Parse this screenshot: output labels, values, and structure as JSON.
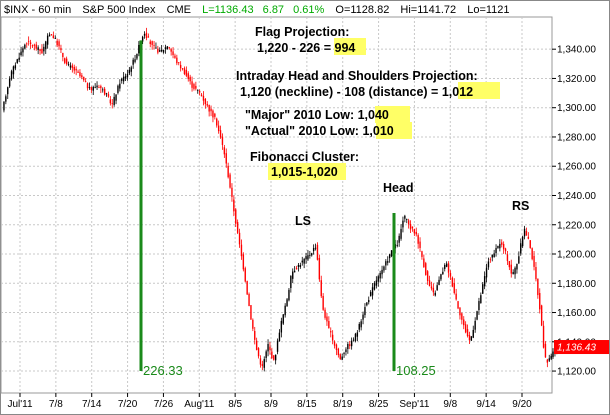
{
  "header": {
    "symbol": "$INX - 60 min",
    "name": "S&P 500 Index",
    "exchange": "CME",
    "last": "L=1136.43",
    "change": "6.87",
    "change_pct": "0.61%",
    "open": "O=1128.82",
    "high": "Hi=1141.72",
    "low": "Lo=1121"
  },
  "chart_data": {
    "type": "bar",
    "subtype": "ohlc-candlestick",
    "ylim": [
      1105,
      1362
    ],
    "y_ticks": [
      {
        "value": 1120,
        "label": "1,120.00"
      },
      {
        "value": 1140,
        "label": "1,140.00"
      },
      {
        "value": 1160,
        "label": "1,160.00"
      },
      {
        "value": 1180,
        "label": "1,180.00"
      },
      {
        "value": 1200,
        "label": "1,200.00"
      },
      {
        "value": 1220,
        "label": "1,220.00"
      },
      {
        "value": 1240,
        "label": "1,240.00"
      },
      {
        "value": 1260,
        "label": "1,260.00"
      },
      {
        "value": 1280,
        "label": "1,280.00"
      },
      {
        "value": 1300,
        "label": "1,300.00"
      },
      {
        "value": 1320,
        "label": "1,320.00"
      },
      {
        "value": 1340,
        "label": "1,340.00"
      }
    ],
    "x_ticks": [
      "Jul'11",
      "7/8",
      "7/14",
      "7/20",
      "7/26",
      "Aug'11",
      "8/5",
      "8/9",
      "8/15",
      "8/19",
      "8/25",
      "Sep'11",
      "9/8",
      "9/14",
      "9/20"
    ],
    "grid": true,
    "price_path": [
      [
        0,
        1297
      ],
      [
        8,
        1322
      ],
      [
        16,
        1334
      ],
      [
        24,
        1345
      ],
      [
        32,
        1342
      ],
      [
        40,
        1338
      ],
      [
        48,
        1352
      ],
      [
        56,
        1343
      ],
      [
        64,
        1330
      ],
      [
        72,
        1326
      ],
      [
        80,
        1320
      ],
      [
        88,
        1312
      ],
      [
        96,
        1316
      ],
      [
        104,
        1309
      ],
      [
        110,
        1302
      ],
      [
        118,
        1318
      ],
      [
        126,
        1324
      ],
      [
        134,
        1336
      ],
      [
        142,
        1352
      ],
      [
        150,
        1342
      ],
      [
        158,
        1338
      ],
      [
        166,
        1343
      ],
      [
        174,
        1332
      ],
      [
        182,
        1325
      ],
      [
        190,
        1315
      ],
      [
        198,
        1310
      ],
      [
        206,
        1300
      ],
      [
        214,
        1291
      ],
      [
        222,
        1270
      ],
      [
        228,
        1246
      ],
      [
        236,
        1212
      ],
      [
        242,
        1188
      ],
      [
        248,
        1160
      ],
      [
        254,
        1136
      ],
      [
        260,
        1122
      ],
      [
        266,
        1138
      ],
      [
        272,
        1126
      ],
      [
        278,
        1150
      ],
      [
        284,
        1166
      ],
      [
        290,
        1188
      ],
      [
        296,
        1192
      ],
      [
        302,
        1196
      ],
      [
        308,
        1200
      ],
      [
        314,
        1206
      ],
      [
        320,
        1165
      ],
      [
        326,
        1150
      ],
      [
        332,
        1139
      ],
      [
        338,
        1128
      ],
      [
        344,
        1136
      ],
      [
        350,
        1140
      ],
      [
        356,
        1148
      ],
      [
        362,
        1162
      ],
      [
        368,
        1172
      ],
      [
        374,
        1182
      ],
      [
        380,
        1188
      ],
      [
        388,
        1200
      ],
      [
        396,
        1208
      ],
      [
        402,
        1226
      ],
      [
        408,
        1218
      ],
      [
        414,
        1214
      ],
      [
        420,
        1198
      ],
      [
        426,
        1180
      ],
      [
        432,
        1172
      ],
      [
        438,
        1184
      ],
      [
        444,
        1194
      ],
      [
        450,
        1180
      ],
      [
        456,
        1164
      ],
      [
        462,
        1150
      ],
      [
        468,
        1140
      ],
      [
        474,
        1158
      ],
      [
        480,
        1176
      ],
      [
        486,
        1195
      ],
      [
        492,
        1200
      ],
      [
        498,
        1208
      ],
      [
        504,
        1200
      ],
      [
        510,
        1185
      ],
      [
        516,
        1196
      ],
      [
        522,
        1218
      ],
      [
        528,
        1206
      ],
      [
        534,
        1182
      ],
      [
        538,
        1162
      ],
      [
        541,
        1140
      ],
      [
        544,
        1125
      ],
      [
        548,
        1130
      ],
      [
        552,
        1134
      ],
      [
        556,
        1136
      ]
    ],
    "current_price": {
      "value": 1136.43,
      "label": "1,136.43"
    },
    "measure_lines": [
      {
        "from": 1346,
        "to": 1120,
        "label": "226.33"
      },
      {
        "from": 1228,
        "to": 1120,
        "label": "108.25"
      }
    ],
    "annotations": {
      "flag_title": "Flag Projection:",
      "flag_calc": "1,220 - 226 = ",
      "flag_result": "994",
      "hs_title": "Intraday Head and Shoulders Projection:",
      "hs_calc": "1,120 (neckline) - 108 (distance) = ",
      "hs_result": "1,012",
      "major_label": "\"Major\" 2010 Low: ",
      "major_value": "1,040",
      "actual_label": "\"Actual\" 2010 Low: ",
      "actual_value": "1,010",
      "fib_title": "Fibonacci Cluster:",
      "fib_value": "1,015-1,020",
      "ls": "LS",
      "head": "Head",
      "rs": "RS"
    },
    "colors": {
      "up": "#000000",
      "down": "#ff0000",
      "measure": "#1a8a1a",
      "highlight": "#ffff66",
      "change": "#00aa00"
    }
  }
}
